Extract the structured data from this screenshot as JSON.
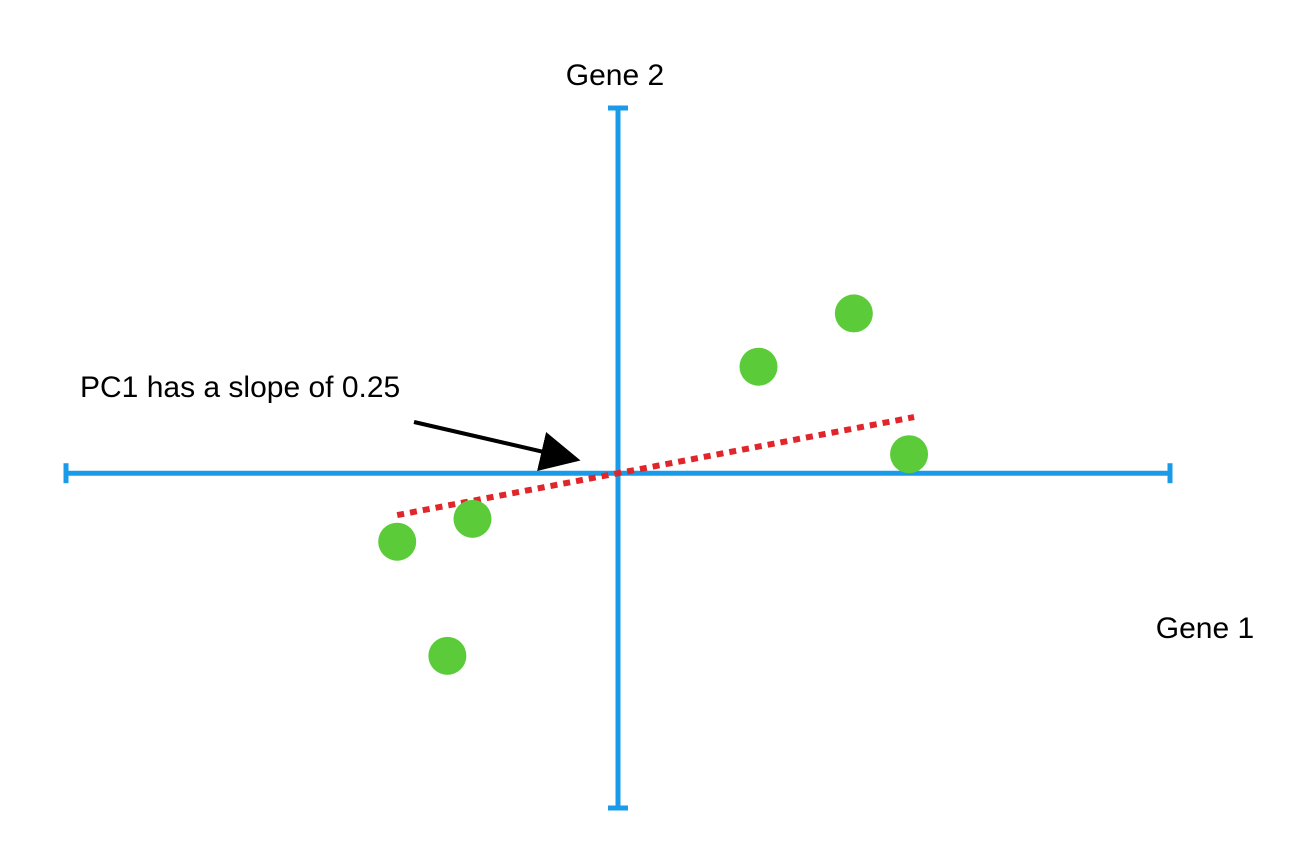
{
  "chart_data": {
    "type": "scatter",
    "title": "",
    "xlabel": "Gene 1",
    "ylabel": "Gene 2",
    "xlim": [
      -5.5,
      5.5
    ],
    "ylim": [
      -4.4,
      4.8
    ],
    "grid": false,
    "legend": "none",
    "points": [
      {
        "x": -2.2,
        "y": -0.9
      },
      {
        "x": -1.45,
        "y": -0.6
      },
      {
        "x": -1.7,
        "y": -2.4
      },
      {
        "x": 1.4,
        "y": 1.4
      },
      {
        "x": 2.35,
        "y": 2.1
      },
      {
        "x": 2.9,
        "y": 0.25
      }
    ],
    "fit_line": {
      "name": "PC1",
      "slope": 0.25,
      "x_range": [
        -2.2,
        2.95
      ],
      "style": "dotted"
    },
    "annotation": {
      "text": "PC1 has a slope of 0.25",
      "points_to": {
        "x": -0.45,
        "y": 0.15
      }
    },
    "colors": {
      "axis": "#1a9be9",
      "points": "#5bcb3a",
      "line": "#e0262a",
      "arrow": "#000000"
    }
  }
}
